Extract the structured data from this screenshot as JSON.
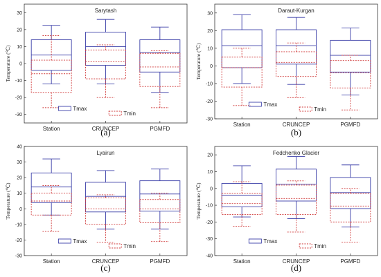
{
  "colors": {
    "tmax": "#3b3fa8",
    "tmin": "#d03a3a",
    "axis": "#333333"
  },
  "legend": {
    "tmax": "Tmax",
    "tmin": "Tmin"
  },
  "chart_data": [
    {
      "type": "box",
      "panel_label": "(a)",
      "title": "Sarytash",
      "ylabel": "Temperature (℃)",
      "categories": [
        "Station",
        "CRUNCEP",
        "PGMFD"
      ],
      "ylim": [
        -35,
        35
      ],
      "yticks": [
        -30,
        -20,
        -10,
        0,
        10,
        20,
        30
      ],
      "series": [
        {
          "name": "Tmax",
          "boxes": [
            {
              "min": -12,
              "q1": -4,
              "median": 5,
              "q3": 14,
              "max": 22.5
            },
            {
              "min": -12,
              "q1": -1,
              "median": 10,
              "q3": 18.5,
              "max": 26
            },
            {
              "min": -17,
              "q1": -5,
              "median": 6.5,
              "q3": 14,
              "max": 21.5
            }
          ]
        },
        {
          "name": "Tmin",
          "boxes": [
            {
              "min": -26,
              "q1": -17,
              "median": -6,
              "q3": 2,
              "max": 16.5
            },
            {
              "min": -20,
              "q1": -9,
              "median": 1,
              "q3": 8,
              "max": 11
            },
            {
              "min": -26,
              "q1": -13.5,
              "median": -2,
              "q3": 6,
              "max": 7.5
            }
          ]
        }
      ]
    },
    {
      "type": "box",
      "panel_label": "(b)",
      "title": "Daraut-Kurgan",
      "ylabel": "Temperature (℃)",
      "categories": [
        "Station",
        "CRUNCEP",
        "PGMFD"
      ],
      "ylim": [
        -30,
        35
      ],
      "yticks": [
        -30,
        -20,
        -10,
        0,
        10,
        20,
        30
      ],
      "series": [
        {
          "name": "Tmax",
          "boxes": [
            {
              "min": -10,
              "q1": -1,
              "median": 11.5,
              "q3": 20.5,
              "max": 29
            },
            {
              "min": -10.5,
              "q1": 1,
              "median": 11.5,
              "q3": 20.5,
              "max": 27.5
            },
            {
              "min": -16.5,
              "q1": -3.5,
              "median": 6,
              "q3": 14.5,
              "max": 21.5
            }
          ]
        },
        {
          "name": "Tmin",
          "boxes": [
            {
              "min": -22.5,
              "q1": -12,
              "median": -1,
              "q3": 5,
              "max": 10
            },
            {
              "min": -18,
              "q1": -6,
              "median": 2,
              "q3": 8,
              "max": 13
            },
            {
              "min": -25,
              "q1": -12.5,
              "median": -4,
              "q3": 3,
              "max": 6
            }
          ]
        }
      ]
    },
    {
      "type": "box",
      "panel_label": "(c)",
      "title": "Lyairun",
      "ylabel": "Temperature (℃)",
      "categories": [
        "Station",
        "CRUNCEP",
        "PGMFD"
      ],
      "ylim": [
        -30,
        40
      ],
      "yticks": [
        -30,
        -20,
        -10,
        0,
        10,
        20,
        30,
        40
      ],
      "series": [
        {
          "name": "Tmax",
          "boxes": [
            {
              "min": -4,
              "q1": 4,
              "median": 14,
              "q3": 23,
              "max": 32
            },
            {
              "min": -13,
              "q1": -2,
              "median": 8,
              "q3": 17,
              "max": 24.5
            },
            {
              "min": -13,
              "q1": -1.5,
              "median": 9.5,
              "q3": 18,
              "max": 25.5
            }
          ]
        },
        {
          "name": "Tmin",
          "boxes": [
            {
              "min": -14.5,
              "q1": -4,
              "median": 5,
              "q3": 10,
              "max": 15
            },
            {
              "min": -21.5,
              "q1": -10,
              "median": 0,
              "q3": 7,
              "max": 9
            },
            {
              "min": -21,
              "q1": -9,
              "median": 0,
              "q3": 6,
              "max": 10
            }
          ]
        }
      ]
    },
    {
      "type": "box",
      "panel_label": "(d)",
      "title": "Fedchenko Glacier",
      "ylabel": "Temperature (℃)",
      "categories": [
        "Station",
        "CRUNCEP",
        "PGMFD"
      ],
      "ylim": [
        -40,
        25
      ],
      "yticks": [
        -40,
        -30,
        -20,
        -10,
        0,
        10,
        20
      ],
      "series": [
        {
          "name": "Tmax",
          "boxes": [
            {
              "min": -17,
              "q1": -11,
              "median": -4,
              "q3": 3,
              "max": 13.5
            },
            {
              "min": -18,
              "q1": -7.5,
              "median": 2.5,
              "q3": 11.5,
              "max": 19
            },
            {
              "min": -23,
              "q1": -12,
              "median": -2.5,
              "q3": 6.5,
              "max": 14
            }
          ]
        },
        {
          "name": "Tmin",
          "boxes": [
            {
              "min": -22.5,
              "q1": -15.5,
              "median": -9,
              "q3": -3,
              "max": 4
            },
            {
              "min": -26,
              "q1": -15.5,
              "median": -6,
              "q3": 2,
              "max": 4.5
            },
            {
              "min": -32,
              "q1": -20,
              "median": -10.5,
              "q3": -3,
              "max": 0
            }
          ]
        }
      ]
    }
  ]
}
